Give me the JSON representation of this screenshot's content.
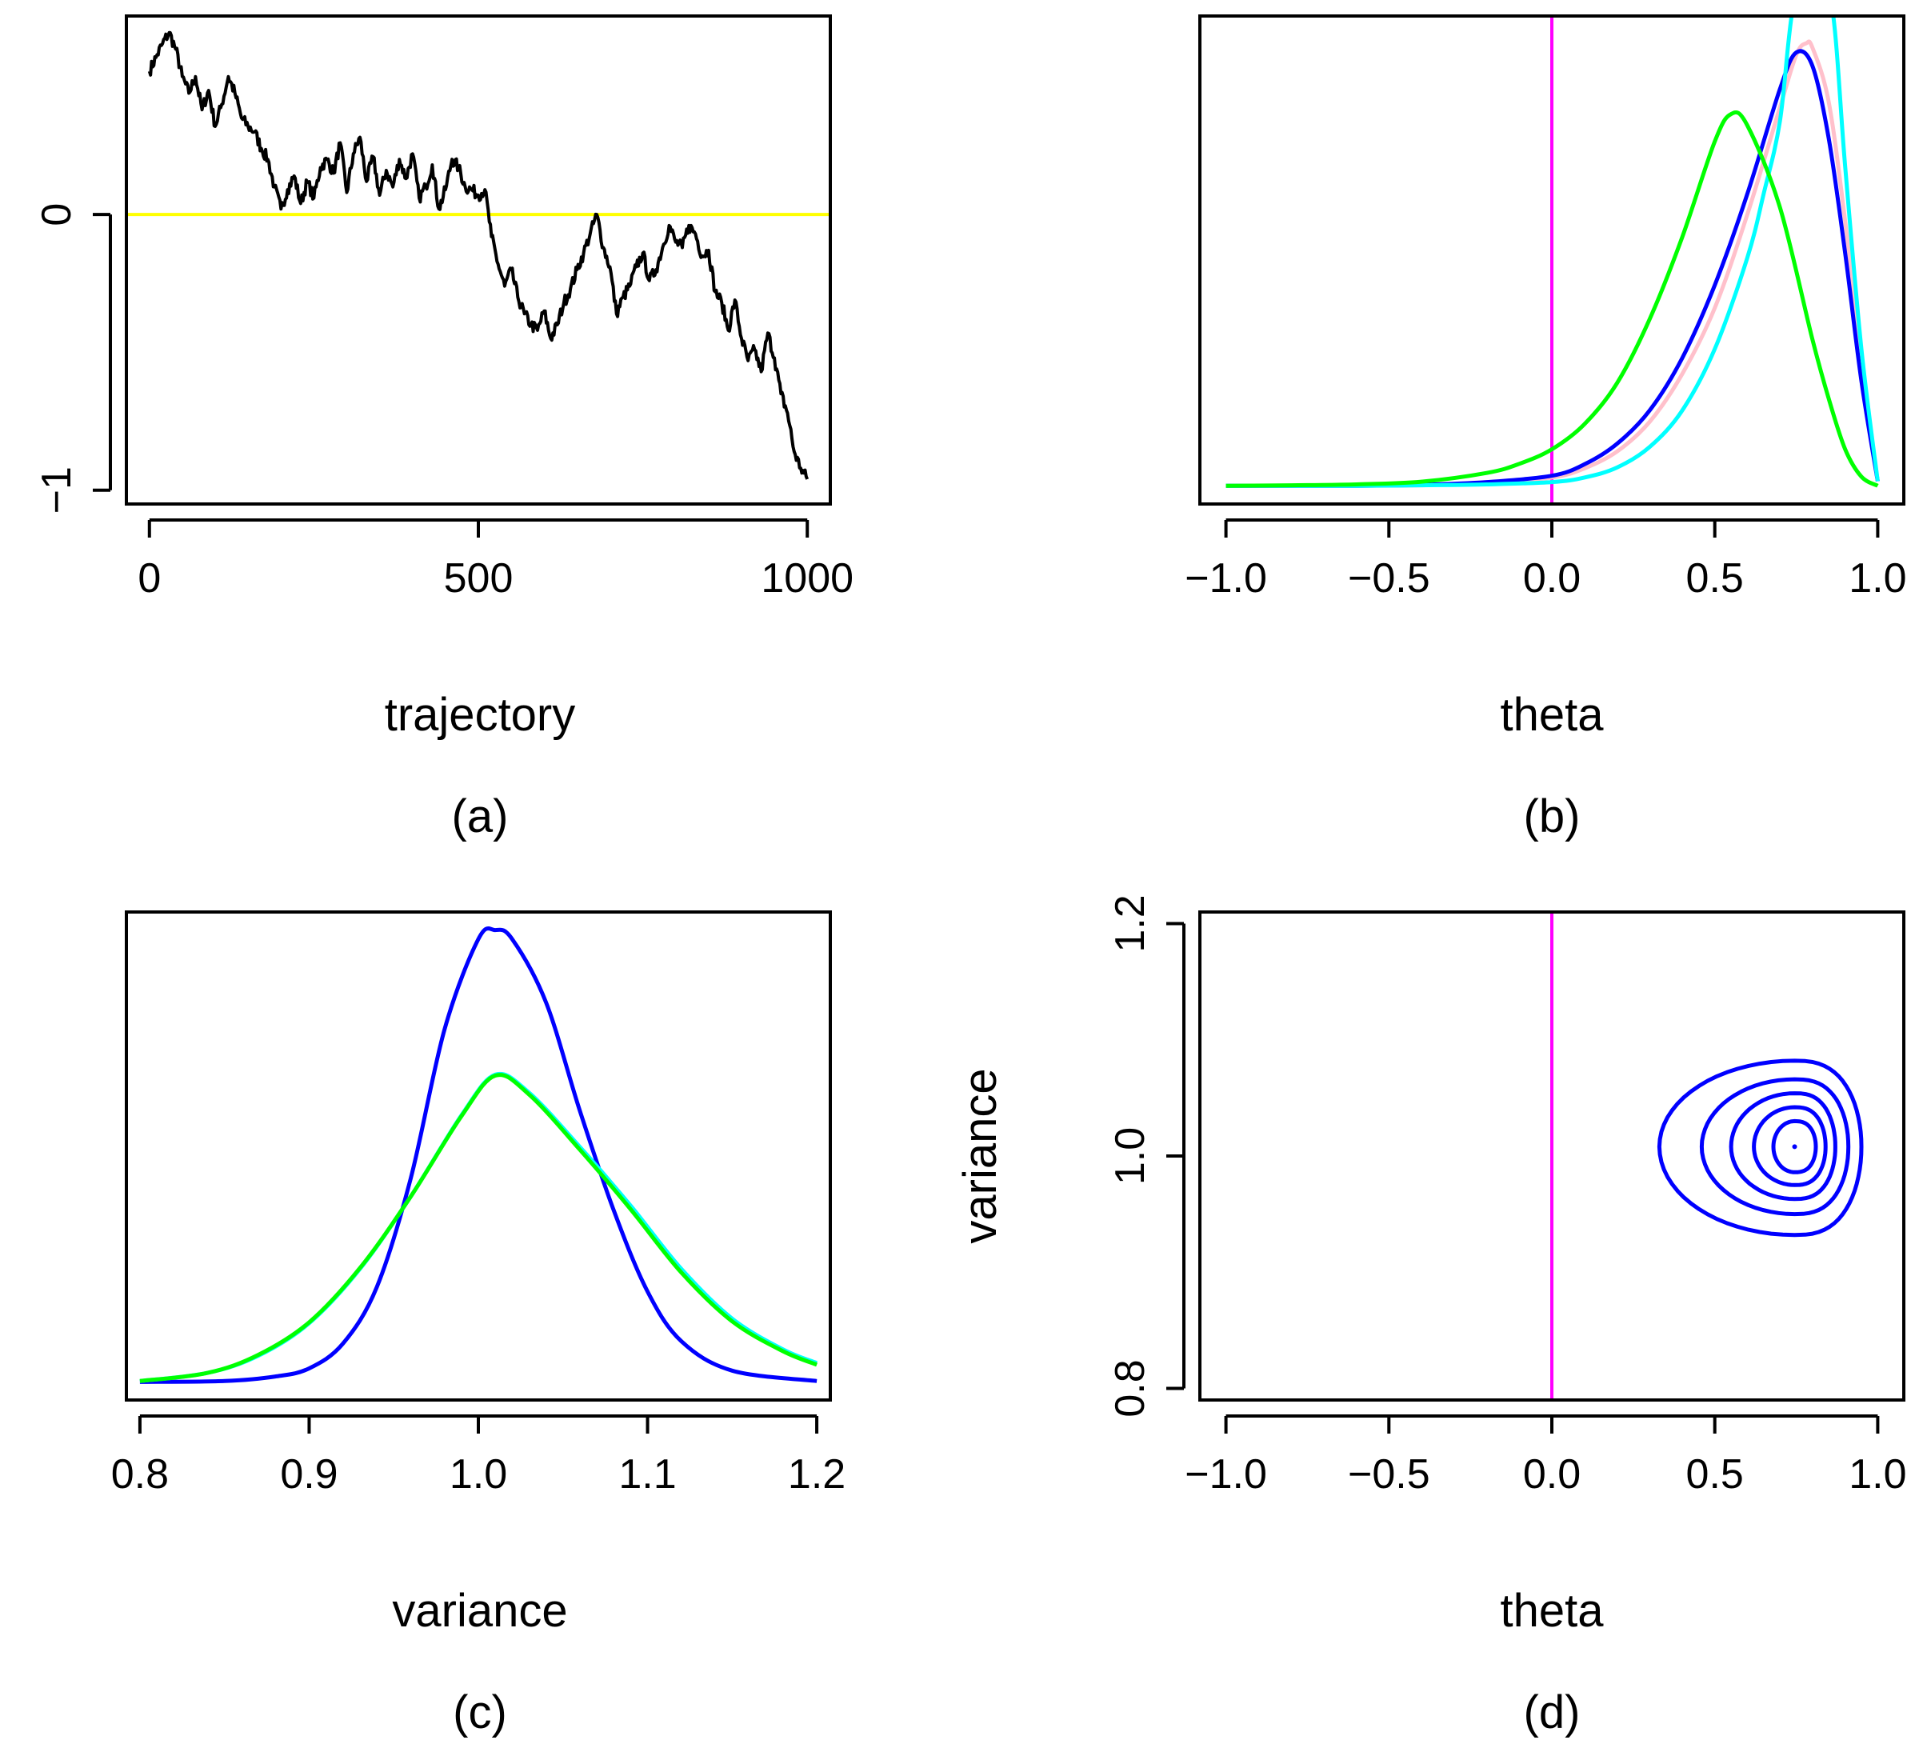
{
  "panels": [
    {
      "id": "a",
      "caption": "(a)",
      "xlabel": "trajectory",
      "ylabel": ""
    },
    {
      "id": "b",
      "caption": "(b)",
      "xlabel": "theta",
      "ylabel": ""
    },
    {
      "id": "c",
      "caption": "(c)",
      "xlabel": "variance",
      "ylabel": ""
    },
    {
      "id": "d",
      "caption": "(d)",
      "xlabel": "theta",
      "ylabel": "variance"
    }
  ],
  "chart_data": [
    {
      "id": "a",
      "type": "line",
      "title": "",
      "xlabel": "trajectory",
      "ylabel": "",
      "xlim": [
        -35,
        1035
      ],
      "ylim": [
        -1.05,
        0.72
      ],
      "xticks": [
        0,
        500,
        1000
      ],
      "xtick_labels": [
        "0",
        "500",
        "1000"
      ],
      "yticks": [
        -1,
        0
      ],
      "ytick_labels": [
        "−1",
        "0"
      ],
      "grid": false,
      "hlines": [
        {
          "y": 0,
          "color": "#FFFF00"
        }
      ],
      "series": [
        {
          "color": "#000000",
          "x": [
            0,
            10,
            20,
            30,
            40,
            50,
            60,
            70,
            80,
            90,
            100,
            110,
            120,
            130,
            140,
            150,
            160,
            170,
            180,
            190,
            200,
            210,
            220,
            230,
            240,
            250,
            260,
            270,
            280,
            290,
            300,
            310,
            320,
            330,
            340,
            350,
            360,
            370,
            380,
            390,
            400,
            410,
            420,
            430,
            440,
            450,
            460,
            470,
            480,
            490,
            500,
            510,
            520,
            530,
            540,
            550,
            560,
            570,
            580,
            590,
            600,
            610,
            620,
            630,
            640,
            650,
            660,
            670,
            680,
            690,
            700,
            710,
            720,
            730,
            740,
            750,
            760,
            770,
            780,
            790,
            800,
            810,
            820,
            830,
            840,
            850,
            860,
            870,
            880,
            890,
            900,
            910,
            920,
            930,
            940,
            950,
            960,
            970,
            980,
            990,
            1000
          ],
          "values": [
            0.52,
            0.57,
            0.62,
            0.66,
            0.6,
            0.5,
            0.44,
            0.5,
            0.38,
            0.45,
            0.32,
            0.4,
            0.5,
            0.44,
            0.35,
            0.32,
            0.3,
            0.24,
            0.2,
            0.1,
            0.02,
            0.09,
            0.14,
            0.04,
            0.12,
            0.06,
            0.17,
            0.2,
            0.15,
            0.26,
            0.08,
            0.22,
            0.28,
            0.12,
            0.21,
            0.07,
            0.16,
            0.1,
            0.2,
            0.13,
            0.22,
            0.06,
            0.1,
            0.18,
            0.02,
            0.09,
            0.2,
            0.17,
            0.1,
            0.09,
            0.07,
            0.09,
            -0.08,
            -0.18,
            -0.26,
            -0.2,
            -0.3,
            -0.36,
            -0.4,
            -0.42,
            -0.35,
            -0.45,
            -0.4,
            -0.32,
            -0.27,
            -0.2,
            -0.14,
            -0.07,
            0.0,
            -0.12,
            -0.19,
            -0.36,
            -0.3,
            -0.26,
            -0.19,
            -0.14,
            -0.24,
            -0.2,
            -0.12,
            -0.04,
            -0.1,
            -0.12,
            -0.04,
            -0.07,
            -0.15,
            -0.13,
            -0.28,
            -0.32,
            -0.42,
            -0.31,
            -0.45,
            -0.53,
            -0.49,
            -0.57,
            -0.43,
            -0.52,
            -0.65,
            -0.72,
            -0.86,
            -0.92,
            -0.96
          ]
        }
      ]
    },
    {
      "id": "b",
      "type": "line",
      "title": "",
      "xlabel": "theta",
      "ylabel": "",
      "xlim": [
        -1.08,
        1.08
      ],
      "ylim": [
        -0.04,
        1.03
      ],
      "xticks": [
        -1.0,
        -0.5,
        0.0,
        0.5,
        1.0
      ],
      "xtick_labels": [
        "−1.0",
        "−0.5",
        "0.0",
        "0.5",
        "1.0"
      ],
      "yticks": [],
      "grid": false,
      "vlines": [
        {
          "x": 0.0,
          "color": "#FF00FF"
        }
      ],
      "series": [
        {
          "color": "#FFC0CB",
          "x": [
            -1.0,
            -0.8,
            -0.6,
            -0.4,
            -0.2,
            0.0,
            0.1,
            0.2,
            0.3,
            0.4,
            0.5,
            0.6,
            0.7,
            0.75,
            0.78,
            0.8,
            0.85,
            0.9,
            0.95,
            1.0
          ],
          "values": [
            0.0,
            0.0,
            0.0,
            0.001,
            0.006,
            0.018,
            0.038,
            0.075,
            0.14,
            0.245,
            0.39,
            0.595,
            0.83,
            0.945,
            0.97,
            0.96,
            0.84,
            0.58,
            0.27,
            0.01
          ]
        },
        {
          "color": "#0000FF",
          "x": [
            -1.0,
            -0.8,
            -0.6,
            -0.4,
            -0.2,
            0.0,
            0.1,
            0.2,
            0.3,
            0.4,
            0.5,
            0.6,
            0.7,
            0.75,
            0.8,
            0.85,
            0.9,
            0.95,
            1.0
          ],
          "values": [
            0.0,
            0.0,
            0.0,
            0.002,
            0.008,
            0.022,
            0.047,
            0.092,
            0.165,
            0.28,
            0.44,
            0.64,
            0.87,
            0.95,
            0.92,
            0.76,
            0.51,
            0.23,
            0.01
          ]
        },
        {
          "color": "#00FFFF",
          "x": [
            -1.0,
            -0.8,
            -0.6,
            -0.4,
            -0.2,
            0.0,
            0.1,
            0.2,
            0.3,
            0.4,
            0.5,
            0.6,
            0.65,
            0.7,
            0.74,
            0.8,
            0.86,
            0.9,
            0.95,
            1.0
          ],
          "values": [
            0.0,
            0.0,
            0.0,
            0.001,
            0.003,
            0.008,
            0.018,
            0.04,
            0.085,
            0.165,
            0.3,
            0.5,
            0.64,
            0.8,
            1.05,
            1.2,
            1.05,
            0.7,
            0.3,
            0.01
          ]
        },
        {
          "color": "#00FF00",
          "x": [
            -1.0,
            -0.8,
            -0.6,
            -0.4,
            -0.2,
            -0.1,
            0.0,
            0.1,
            0.2,
            0.3,
            0.4,
            0.5,
            0.55,
            0.6,
            0.7,
            0.8,
            0.85,
            0.9,
            0.95,
            1.0
          ],
          "values": [
            0.0,
            0.001,
            0.003,
            0.009,
            0.028,
            0.048,
            0.08,
            0.135,
            0.225,
            0.365,
            0.545,
            0.755,
            0.815,
            0.79,
            0.61,
            0.32,
            0.19,
            0.08,
            0.02,
            0.0
          ]
        }
      ]
    },
    {
      "id": "c",
      "type": "line",
      "title": "",
      "xlabel": "variance",
      "ylabel": "",
      "xlim": [
        0.792,
        1.208
      ],
      "ylim": [
        -0.04,
        1.04
      ],
      "xticks": [
        0.8,
        0.9,
        1.0,
        1.1,
        1.2
      ],
      "xtick_labels": [
        "0.8",
        "0.9",
        "1.0",
        "1.1",
        "1.2"
      ],
      "yticks": [],
      "grid": false,
      "series": [
        {
          "color": "#0000FF",
          "x": [
            0.8,
            0.85,
            0.88,
            0.9,
            0.92,
            0.94,
            0.96,
            0.98,
            1.0,
            1.01,
            1.02,
            1.04,
            1.06,
            1.08,
            1.1,
            1.12,
            1.15,
            1.2
          ],
          "values": [
            0.0,
            0.002,
            0.012,
            0.03,
            0.085,
            0.21,
            0.45,
            0.78,
            0.98,
            1.0,
            0.98,
            0.84,
            0.6,
            0.38,
            0.2,
            0.09,
            0.025,
            0.002
          ]
        },
        {
          "color": "#00FFFF",
          "x": [
            0.8,
            0.84,
            0.87,
            0.9,
            0.93,
            0.96,
            0.99,
            1.01,
            1.03,
            1.06,
            1.09,
            1.12,
            1.15,
            1.18,
            1.2
          ],
          "values": [
            0.002,
            0.02,
            0.058,
            0.13,
            0.25,
            0.41,
            0.59,
            0.68,
            0.64,
            0.52,
            0.39,
            0.25,
            0.14,
            0.072,
            0.042
          ]
        },
        {
          "color": "#00FF00",
          "x": [
            0.8,
            0.84,
            0.87,
            0.9,
            0.93,
            0.96,
            0.99,
            1.01,
            1.03,
            1.06,
            1.09,
            1.12,
            1.15,
            1.18,
            1.2
          ],
          "values": [
            0.002,
            0.02,
            0.06,
            0.132,
            0.252,
            0.41,
            0.588,
            0.678,
            0.636,
            0.514,
            0.382,
            0.242,
            0.134,
            0.068,
            0.038
          ]
        }
      ]
    },
    {
      "id": "d",
      "type": "contour",
      "title": "",
      "xlabel": "theta",
      "ylabel": "variance",
      "xlim": [
        -1.08,
        1.08
      ],
      "ylim": [
        0.79,
        1.21
      ],
      "xticks": [
        -1.0,
        -0.5,
        0.0,
        0.5,
        1.0
      ],
      "xtick_labels": [
        "−1.0",
        "−0.5",
        "0.0",
        "0.5",
        "1.0"
      ],
      "yticks": [
        0.8,
        1.0,
        1.2
      ],
      "ytick_labels": [
        "0.8",
        "1.0",
        "1.2"
      ],
      "grid": false,
      "vlines": [
        {
          "x": 0.0,
          "color": "#FF00FF"
        }
      ],
      "contour_color": "#0000FF",
      "center": {
        "theta": 0.745,
        "variance": 1.008
      },
      "contours": [
        {
          "theta_min": 0.33,
          "theta_max": 0.95,
          "variance_min": 0.932,
          "variance_max": 1.082
        },
        {
          "theta_min": 0.46,
          "theta_max": 0.91,
          "variance_min": 0.95,
          "variance_max": 1.066
        },
        {
          "theta_min": 0.55,
          "theta_max": 0.87,
          "variance_min": 0.963,
          "variance_max": 1.054
        },
        {
          "theta_min": 0.62,
          "theta_max": 0.84,
          "variance_min": 0.975,
          "variance_max": 1.042
        },
        {
          "theta_min": 0.68,
          "theta_max": 0.81,
          "variance_min": 0.986,
          "variance_max": 1.03
        }
      ]
    }
  ]
}
